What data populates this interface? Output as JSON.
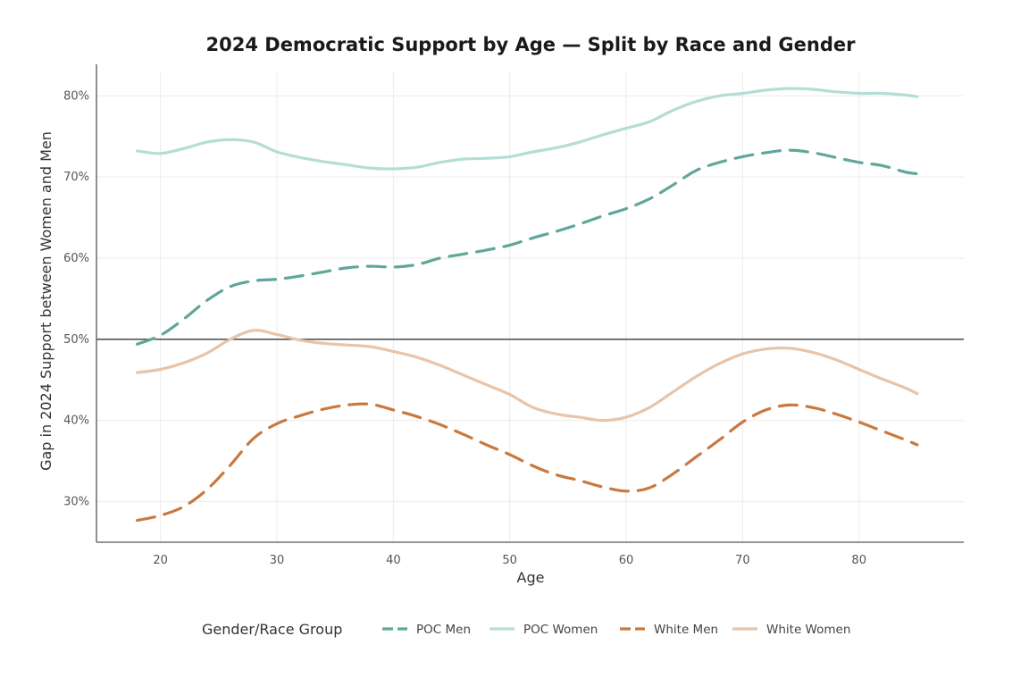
{
  "chart_data": {
    "type": "line",
    "title": "2024 Democratic Support by Age — Split by Race and Gender",
    "xlabel": "Age",
    "ylabel": "Gap in 2024 Support between Women and Men",
    "xlim": [
      14.5,
      89
    ],
    "ylim": [
      25,
      83
    ],
    "x_ticks": [
      20,
      30,
      40,
      50,
      60,
      70,
      80
    ],
    "y_ticks": [
      30,
      40,
      50,
      60,
      70,
      80
    ],
    "y_tick_labels": [
      "30%",
      "40%",
      "50%",
      "60%",
      "70%",
      "80%"
    ],
    "reference_line_y": 50,
    "grid": true,
    "legend": {
      "title": "Gender/Race Group",
      "position": "bottom"
    },
    "series": [
      {
        "name": "POC Men",
        "color": "#5fa79b",
        "dash": "dashed",
        "points": [
          [
            18,
            49.4
          ],
          [
            20,
            50.5
          ],
          [
            22,
            52.5
          ],
          [
            24,
            54.8
          ],
          [
            26,
            56.5
          ],
          [
            28,
            57.2
          ],
          [
            30,
            57.4
          ],
          [
            32,
            57.8
          ],
          [
            34,
            58.3
          ],
          [
            36,
            58.8
          ],
          [
            38,
            59.0
          ],
          [
            40,
            58.9
          ],
          [
            42,
            59.2
          ],
          [
            44,
            60.0
          ],
          [
            46,
            60.5
          ],
          [
            48,
            61.0
          ],
          [
            50,
            61.6
          ],
          [
            52,
            62.5
          ],
          [
            54,
            63.3
          ],
          [
            56,
            64.2
          ],
          [
            58,
            65.2
          ],
          [
            60,
            66.1
          ],
          [
            62,
            67.3
          ],
          [
            64,
            69.0
          ],
          [
            66,
            70.8
          ],
          [
            68,
            71.8
          ],
          [
            70,
            72.5
          ],
          [
            72,
            73.0
          ],
          [
            74,
            73.3
          ],
          [
            76,
            73.0
          ],
          [
            78,
            72.4
          ],
          [
            80,
            71.8
          ],
          [
            82,
            71.4
          ],
          [
            84,
            70.6
          ],
          [
            85,
            70.4
          ]
        ]
      },
      {
        "name": "POC Women",
        "color": "#b3ddd6",
        "dash": "solid",
        "points": [
          [
            18,
            73.2
          ],
          [
            20,
            72.9
          ],
          [
            22,
            73.5
          ],
          [
            24,
            74.3
          ],
          [
            26,
            74.6
          ],
          [
            28,
            74.3
          ],
          [
            30,
            73.1
          ],
          [
            32,
            72.4
          ],
          [
            34,
            71.9
          ],
          [
            36,
            71.5
          ],
          [
            38,
            71.1
          ],
          [
            40,
            71.0
          ],
          [
            42,
            71.2
          ],
          [
            44,
            71.8
          ],
          [
            46,
            72.2
          ],
          [
            48,
            72.3
          ],
          [
            50,
            72.5
          ],
          [
            52,
            73.1
          ],
          [
            54,
            73.6
          ],
          [
            56,
            74.3
          ],
          [
            58,
            75.2
          ],
          [
            60,
            76.0
          ],
          [
            62,
            76.8
          ],
          [
            64,
            78.2
          ],
          [
            66,
            79.3
          ],
          [
            68,
            80.0
          ],
          [
            70,
            80.3
          ],
          [
            72,
            80.7
          ],
          [
            74,
            80.9
          ],
          [
            76,
            80.8
          ],
          [
            78,
            80.5
          ],
          [
            80,
            80.3
          ],
          [
            82,
            80.3
          ],
          [
            84,
            80.1
          ],
          [
            85,
            79.9
          ]
        ]
      },
      {
        "name": "White Men",
        "color": "#c9793f",
        "dash": "dashed",
        "points": [
          [
            18,
            27.7
          ],
          [
            20,
            28.3
          ],
          [
            22,
            29.4
          ],
          [
            24,
            31.5
          ],
          [
            26,
            34.5
          ],
          [
            28,
            37.8
          ],
          [
            30,
            39.6
          ],
          [
            32,
            40.6
          ],
          [
            34,
            41.4
          ],
          [
            36,
            41.9
          ],
          [
            38,
            42.0
          ],
          [
            40,
            41.3
          ],
          [
            42,
            40.5
          ],
          [
            44,
            39.5
          ],
          [
            46,
            38.3
          ],
          [
            48,
            37.0
          ],
          [
            50,
            35.8
          ],
          [
            52,
            34.4
          ],
          [
            54,
            33.3
          ],
          [
            56,
            32.6
          ],
          [
            58,
            31.8
          ],
          [
            60,
            31.3
          ],
          [
            62,
            31.7
          ],
          [
            64,
            33.4
          ],
          [
            66,
            35.5
          ],
          [
            68,
            37.6
          ],
          [
            70,
            39.8
          ],
          [
            72,
            41.3
          ],
          [
            74,
            41.9
          ],
          [
            76,
            41.6
          ],
          [
            78,
            40.8
          ],
          [
            80,
            39.8
          ],
          [
            82,
            38.7
          ],
          [
            84,
            37.6
          ],
          [
            85,
            37.0
          ]
        ]
      },
      {
        "name": "White Women",
        "color": "#e8c4a8",
        "dash": "solid",
        "points": [
          [
            18,
            45.9
          ],
          [
            20,
            46.3
          ],
          [
            22,
            47.1
          ],
          [
            24,
            48.3
          ],
          [
            26,
            50.0
          ],
          [
            28,
            51.1
          ],
          [
            30,
            50.6
          ],
          [
            32,
            49.9
          ],
          [
            34,
            49.5
          ],
          [
            36,
            49.3
          ],
          [
            38,
            49.1
          ],
          [
            40,
            48.5
          ],
          [
            42,
            47.8
          ],
          [
            44,
            46.8
          ],
          [
            46,
            45.6
          ],
          [
            48,
            44.4
          ],
          [
            50,
            43.2
          ],
          [
            52,
            41.6
          ],
          [
            54,
            40.8
          ],
          [
            56,
            40.4
          ],
          [
            58,
            40.0
          ],
          [
            60,
            40.4
          ],
          [
            62,
            41.6
          ],
          [
            64,
            43.5
          ],
          [
            66,
            45.4
          ],
          [
            68,
            47.0
          ],
          [
            70,
            48.2
          ],
          [
            72,
            48.8
          ],
          [
            74,
            48.9
          ],
          [
            76,
            48.4
          ],
          [
            78,
            47.5
          ],
          [
            80,
            46.3
          ],
          [
            82,
            45.1
          ],
          [
            84,
            44.0
          ],
          [
            85,
            43.3
          ]
        ]
      }
    ]
  }
}
